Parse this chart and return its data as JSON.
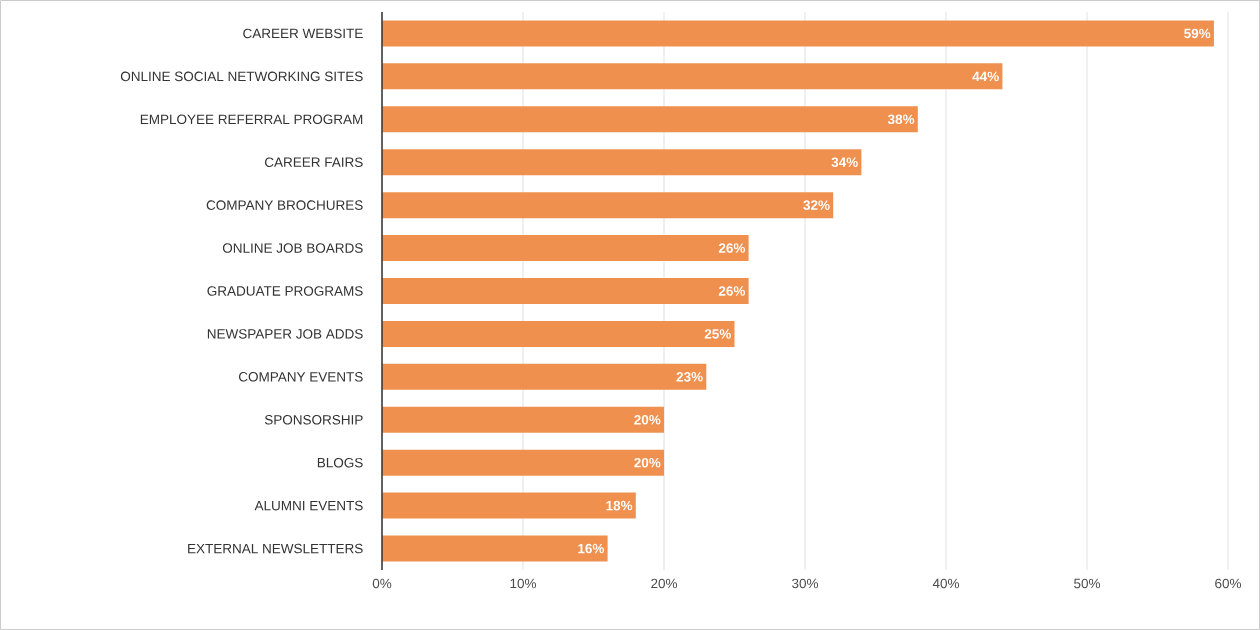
{
  "chart_data": {
    "type": "bar",
    "orientation": "horizontal",
    "categories": [
      "CAREER WEBSITE",
      "ONLINE SOCIAL NETWORKING SITES",
      "EMPLOYEE REFERRAL PROGRAM",
      "CAREER FAIRS",
      "COMPANY BROCHURES",
      "ONLINE JOB BOARDS",
      "GRADUATE PROGRAMS",
      "NEWSPAPER JOB ADDS",
      "COMPANY EVENTS",
      "SPONSORSHIP",
      "BLOGS",
      "ALUMNI EVENTS",
      "EXTERNAL NEWSLETTERS"
    ],
    "values": [
      59,
      44,
      38,
      34,
      32,
      26,
      26,
      25,
      23,
      20,
      20,
      18,
      16
    ],
    "value_labels": [
      "59%",
      "44%",
      "38%",
      "34%",
      "32%",
      "26%",
      "26%",
      "25%",
      "23%",
      "20%",
      "20%",
      "18%",
      "16%"
    ],
    "color": "#f0904f",
    "xlim": [
      0,
      60
    ],
    "xticks": [
      {
        "value": 0,
        "label": "0%"
      },
      {
        "value": 10,
        "label": "10%"
      },
      {
        "value": 20,
        "label": "20%"
      },
      {
        "value": 30,
        "label": "30%"
      },
      {
        "value": 40,
        "label": "40%"
      },
      {
        "value": 50,
        "label": "50%"
      },
      {
        "value": 60,
        "label": "60%"
      }
    ],
    "grid": "x"
  }
}
